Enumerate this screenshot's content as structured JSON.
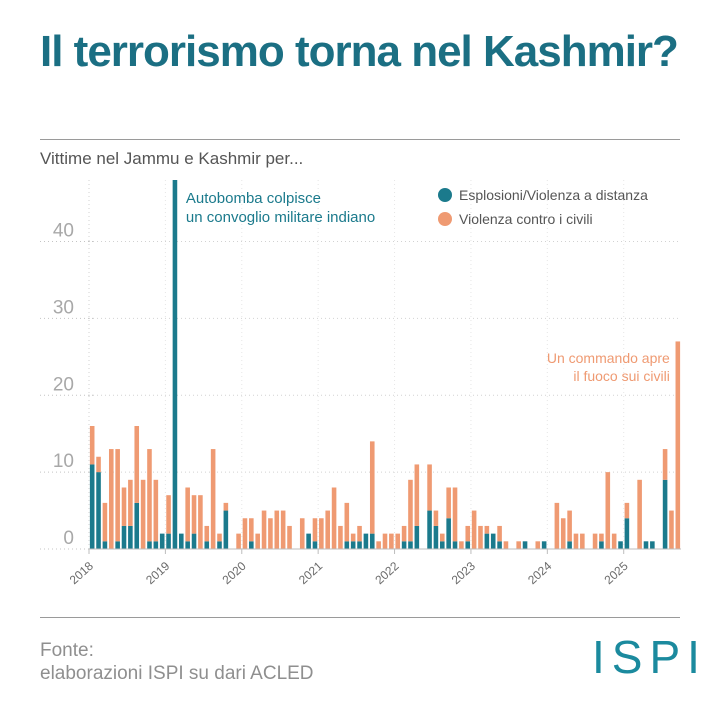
{
  "header": {
    "title": "Il terrorismo torna nel Kashmir?",
    "subtitle": "Vittime nel Jammu e Kashmir per..."
  },
  "colors": {
    "teal": "#1b7a8c",
    "orange": "#ef9a72",
    "title": "#1b6f83"
  },
  "footer": {
    "source_line1": "Fonte:",
    "source_line2": "elaborazioni ISPI su dari ACLED",
    "logo": "ISPI"
  },
  "chart_data": {
    "type": "bar",
    "stacked": true,
    "xlabel": "",
    "ylabel": "",
    "ylim": [
      0,
      48
    ],
    "yticks": [
      "0",
      "10",
      "20",
      "30",
      "40"
    ],
    "xticks": [
      "2018",
      "2019",
      "2020",
      "2021",
      "2022",
      "2023",
      "2024",
      "2025"
    ],
    "series": [
      {
        "name": "Esplosioni/Violenza a distanza",
        "color": "#1b7a8c",
        "values": [
          11,
          10,
          1,
          0,
          1,
          3,
          3,
          6,
          0,
          1,
          1,
          2,
          2,
          48,
          2,
          1,
          2,
          0,
          1,
          0,
          1,
          5,
          0,
          0,
          0,
          1,
          0,
          0,
          0,
          0,
          0,
          0,
          0,
          0,
          2,
          1,
          0,
          0,
          0,
          0,
          1,
          1,
          1,
          2,
          2,
          0,
          0,
          0,
          0,
          1,
          1,
          3,
          0,
          5,
          3,
          1,
          4,
          1,
          0,
          1,
          0,
          0,
          2,
          2,
          1,
          0,
          0,
          0,
          1,
          0,
          0,
          1,
          0,
          0,
          0,
          1,
          0,
          0,
          0,
          0,
          1,
          0,
          0,
          1,
          4,
          0,
          0,
          1,
          1,
          0,
          9,
          0,
          0
        ]
      },
      {
        "name": "Violenza contro i civili",
        "color": "#ef9a72",
        "values": [
          5,
          2,
          5,
          13,
          12,
          5,
          6,
          10,
          9,
          12,
          8,
          0,
          5,
          0,
          0,
          7,
          5,
          7,
          2,
          13,
          1,
          1,
          0,
          2,
          4,
          3,
          2,
          5,
          4,
          5,
          5,
          3,
          0,
          4,
          0,
          3,
          4,
          5,
          8,
          3,
          5,
          1,
          2,
          0,
          12,
          1,
          2,
          2,
          2,
          2,
          8,
          8,
          0,
          6,
          2,
          1,
          4,
          7,
          1,
          2,
          5,
          3,
          1,
          0,
          2,
          1,
          0,
          1,
          0,
          0,
          1,
          0,
          0,
          6,
          4,
          4,
          2,
          2,
          0,
          2,
          1,
          10,
          2,
          0,
          2,
          0,
          9,
          0,
          0,
          0,
          4,
          5,
          27
        ]
      }
    ],
    "legend": {
      "position": "top-right"
    },
    "annotations": [
      {
        "text_line1": "Autobomba colpisce",
        "text_line2": "un convoglio militare indiano",
        "color": "#1b7a8c",
        "index": 13,
        "value": 48
      },
      {
        "text_line1": "Un commando apre",
        "text_line2": "il fuoco sui civili",
        "color": "#ef9a72",
        "index": 92,
        "value": 27
      }
    ]
  }
}
